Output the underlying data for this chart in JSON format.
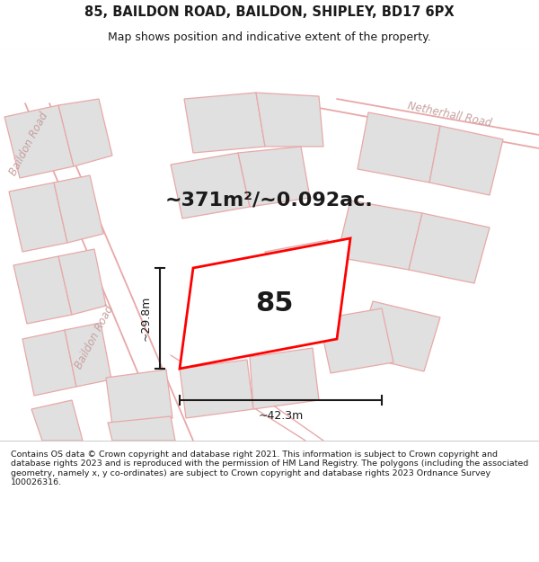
{
  "title": "85, BAILDON ROAD, BAILDON, SHIPLEY, BD17 6PX",
  "subtitle": "Map shows position and indicative extent of the property.",
  "footer": "Contains OS data © Crown copyright and database right 2021. This information is subject to Crown copyright and database rights 2023 and is reproduced with the permission of HM Land Registry. The polygons (including the associated geometry, namely x, y co-ordinates) are subject to Crown copyright and database rights 2023 Ordnance Survey 100026316.",
  "area_label": "~371m²/~0.092ac.",
  "number_label": "85",
  "dim_width": "~42.3m",
  "dim_height": "~29.8m",
  "road_label_main": "Baildon Road",
  "road_label_top_right": "Netherhall Road",
  "road_label_top_left": "Baildon Road",
  "bg_color": "#f2f2f2",
  "plot_outline_color": "#ff0000",
  "building_fill": "#e0e0e0",
  "building_edge": "#e8a8a8",
  "road_line_color": "#e8a8a8",
  "dim_line_color": "#1a1a1a",
  "text_color": "#1a1a1a",
  "road_text_color": "#c8a0a0",
  "title_fontsize": 10.5,
  "subtitle_fontsize": 9,
  "footer_fontsize": 6.8,
  "area_fontsize": 16,
  "number_fontsize": 22,
  "dim_fontsize": 9,
  "road_fontsize": 8.5
}
